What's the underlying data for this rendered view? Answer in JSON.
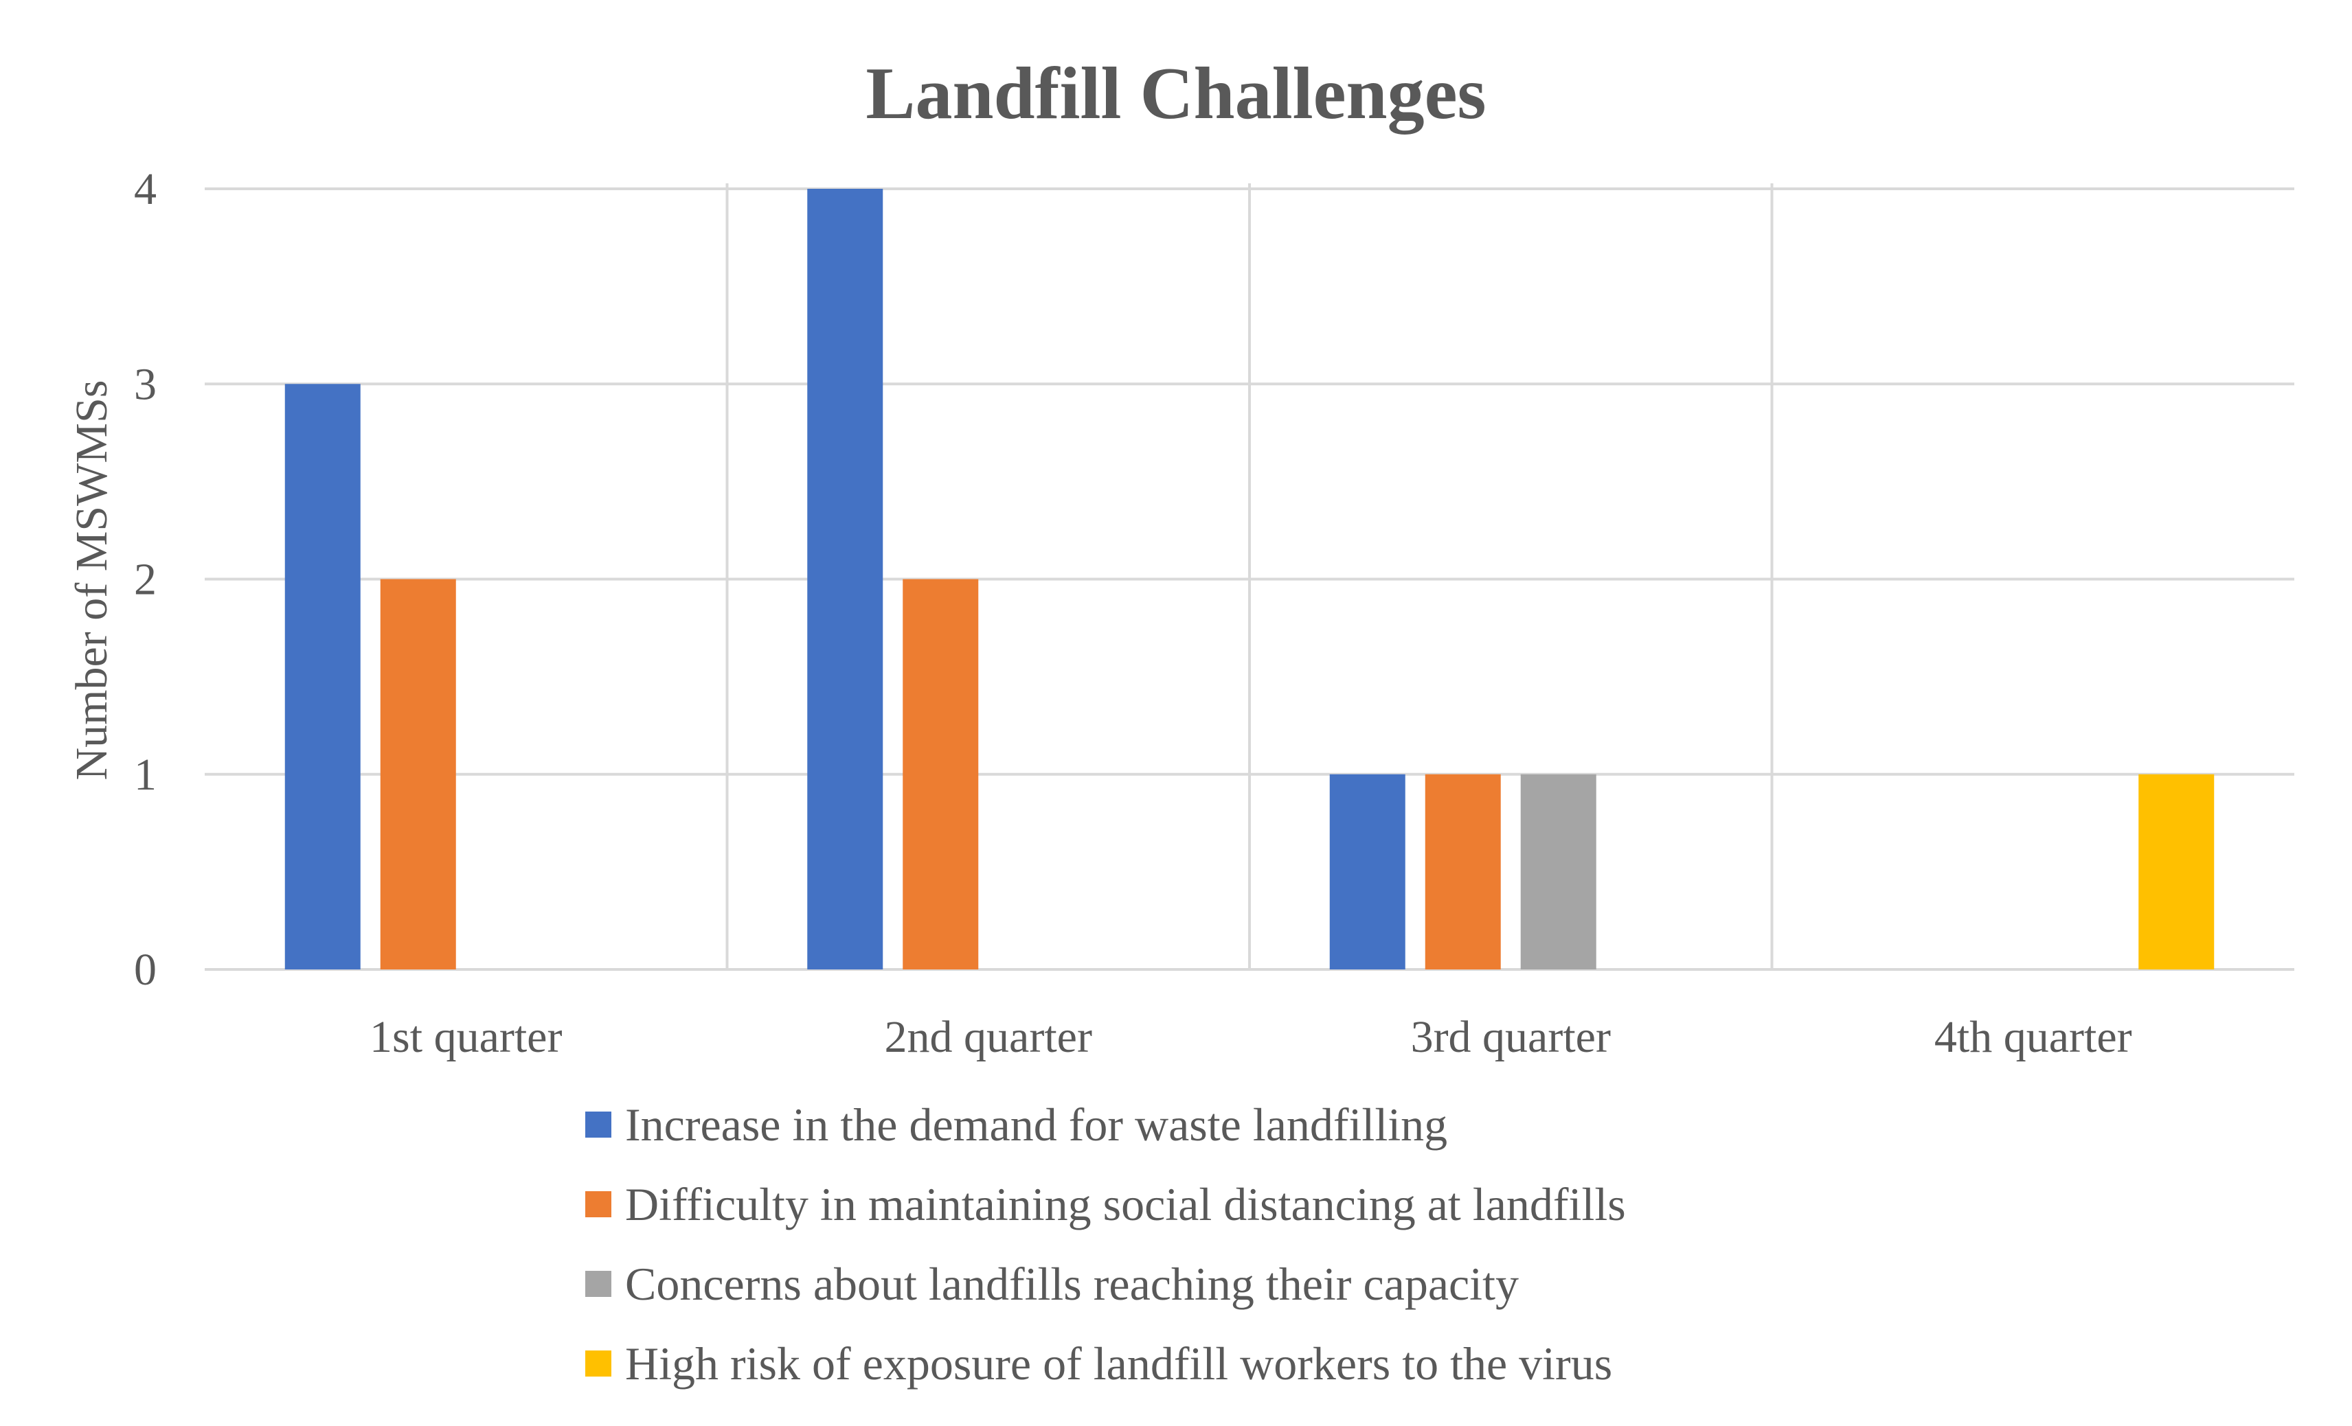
{
  "chart_data": {
    "type": "bar",
    "title": "Landfill Challenges",
    "xlabel": "",
    "ylabel": "Number of MSWMSs",
    "ylim": [
      0,
      4
    ],
    "yticks": [
      0,
      1,
      2,
      3,
      4
    ],
    "grid": true,
    "legend_position": "bottom",
    "categories": [
      "1st quarter",
      "2nd quarter",
      "3rd quarter",
      "4th quarter"
    ],
    "series": [
      {
        "name": "Increase in the demand for waste landfilling",
        "color": "#4472C4",
        "values": [
          3,
          4,
          1,
          0
        ]
      },
      {
        "name": "Difficulty in maintaining social distancing at landfills",
        "color": "#ED7D31",
        "values": [
          2,
          2,
          1,
          0
        ]
      },
      {
        "name": "Concerns about landfills reaching their capacity",
        "color": "#A5A5A5",
        "values": [
          0,
          0,
          1,
          0
        ]
      },
      {
        "name": "High risk of exposure of landfill workers to the virus",
        "color": "#FFC000",
        "values": [
          0,
          0,
          0,
          1
        ]
      }
    ]
  }
}
